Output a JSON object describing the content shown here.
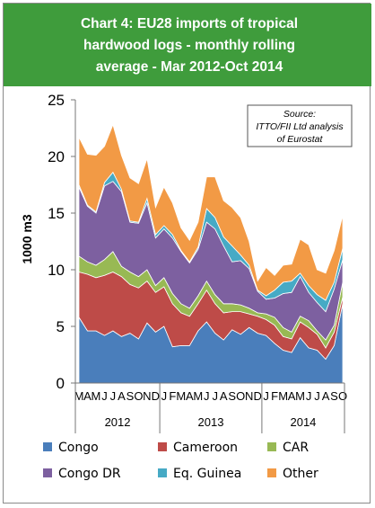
{
  "chart_data": {
    "type": "area",
    "stacked": true,
    "title": "Chart 4: EU28 imports of tropical hardwood logs - monthly rolling average - Mar 2012-Oct 2014",
    "title_lines": [
      "Chart 4: EU28 imports of tropical",
      "hardwood logs - monthly rolling",
      "average - Mar 2012-Oct 2014"
    ],
    "ylabel": "1000 m3",
    "ylim": [
      0,
      25
    ],
    "yticks": [
      0,
      5,
      10,
      15,
      20,
      25
    ],
    "annotation": [
      "Source:",
      "ITTO/FII Ltd analysis",
      "of Eurostat"
    ],
    "month_labels": [
      "M",
      "A",
      "M",
      "J",
      "J",
      "A",
      "S",
      "O",
      "N",
      "D",
      "J",
      "F",
      "M",
      "A",
      "M",
      "J",
      "J",
      "A",
      "S",
      "O",
      "N",
      "D",
      "J",
      "F",
      "M",
      "A",
      "M",
      "J",
      "J",
      "A",
      "S",
      "O"
    ],
    "year_labels": [
      "2012",
      "2013",
      "2014"
    ],
    "legend_position": "bottom",
    "series": [
      {
        "name": "Congo",
        "color": "#4a7ebb",
        "values": [
          5.8,
          4.6,
          4.6,
          4.2,
          4.6,
          4.1,
          4.4,
          3.9,
          5.3,
          4.5,
          5.0,
          3.2,
          3.3,
          3.3,
          4.6,
          5.4,
          4.4,
          3.8,
          4.7,
          4.3,
          4.9,
          4.4,
          4.2,
          3.5,
          2.9,
          2.7,
          4.0,
          3.1,
          2.9,
          2.1,
          3.3,
          7.0
        ]
      },
      {
        "name": "Cameroon",
        "color": "#be4b48",
        "values": [
          4.0,
          5.0,
          4.7,
          5.3,
          5.2,
          5.3,
          4.3,
          4.5,
          3.7,
          3.5,
          3.5,
          3.8,
          2.9,
          2.6,
          2.4,
          2.8,
          2.6,
          2.4,
          1.6,
          2.0,
          1.2,
          1.5,
          1.4,
          1.6,
          1.2,
          1.2,
          1.4,
          1.8,
          1.4,
          1.0,
          1.2,
          0.6
        ]
      },
      {
        "name": "CAR",
        "color": "#98b954",
        "values": [
          1.4,
          1.1,
          1.1,
          1.4,
          1.8,
          0.9,
          1.1,
          1.0,
          1.0,
          0.6,
          0.8,
          0.9,
          0.8,
          0.7,
          0.7,
          0.8,
          0.8,
          0.8,
          0.7,
          0.6,
          0.5,
          0.3,
          0.5,
          0.7,
          0.8,
          0.6,
          0.5,
          0.6,
          0.3,
          0.7,
          0.6,
          1.3
        ]
      },
      {
        "name": "Congo DR",
        "color": "#7d60a0",
        "values": [
          6.1,
          4.9,
          4.6,
          6.5,
          6.2,
          6.6,
          4.4,
          4.7,
          5.9,
          4.2,
          4.3,
          4.9,
          4.6,
          4.0,
          4.1,
          5.2,
          5.8,
          5.1,
          3.7,
          3.9,
          3.5,
          1.9,
          1.3,
          1.7,
          3.0,
          3.5,
          3.5,
          2.5,
          2.5,
          2.5,
          3.2,
          2.0
        ]
      },
      {
        "name": "Eq. Guinea",
        "color": "#46aac5",
        "values": [
          0.2,
          0.1,
          0.1,
          0.3,
          0.8,
          0.2,
          0.1,
          0.1,
          0.4,
          0.3,
          0.3,
          0.3,
          0.1,
          0.1,
          0.2,
          1.2,
          1.0,
          0.8,
          1.4,
          0.5,
          0.3,
          0.1,
          0.3,
          0.7,
          1.0,
          1.0,
          0.3,
          0.6,
          0.7,
          1.0,
          0.6,
          1.0
        ]
      },
      {
        "name": "Other",
        "color": "#f29a45",
        "values": [
          4.2,
          4.5,
          5.0,
          3.2,
          4.2,
          3.0,
          3.8,
          3.4,
          3.5,
          2.4,
          3.4,
          2.8,
          2.0,
          1.9,
          2.2,
          2.8,
          3.6,
          3.2,
          3.4,
          3.3,
          2.1,
          0.8,
          2.5,
          1.3,
          1.5,
          1.5,
          3.0,
          3.6,
          2.2,
          2.4,
          2.8,
          2.9
        ]
      }
    ]
  }
}
